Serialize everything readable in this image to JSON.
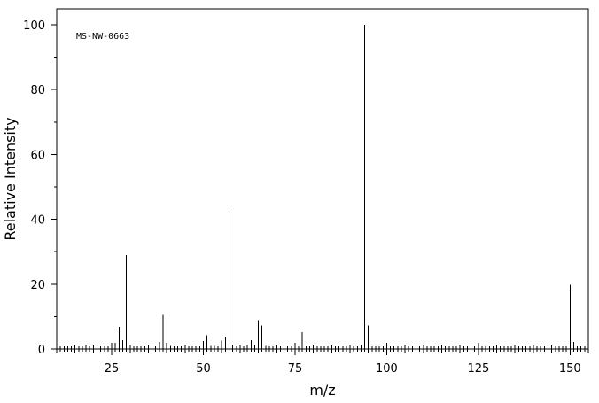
{
  "chart_data": {
    "type": "bar",
    "xlabel": "m/z",
    "ylabel": "Relative Intensity",
    "annotation": "MS-NW-0663",
    "xlim": [
      10,
      155
    ],
    "ylim": [
      0,
      100
    ],
    "x_ticks": [
      25,
      50,
      75,
      100,
      125,
      150
    ],
    "y_ticks": [
      0,
      20,
      40,
      60,
      80,
      100
    ],
    "grid": false,
    "colors": {
      "line": "#000000",
      "background": "#ffffff"
    },
    "peaks": [
      {
        "mz": 15,
        "intensity": 0.5
      },
      {
        "mz": 18,
        "intensity": 1.4
      },
      {
        "mz": 26,
        "intensity": 1.9
      },
      {
        "mz": 27,
        "intensity": 6.8
      },
      {
        "mz": 28,
        "intensity": 2.8
      },
      {
        "mz": 29,
        "intensity": 29.0
      },
      {
        "mz": 30,
        "intensity": 1.0
      },
      {
        "mz": 37,
        "intensity": 0.8
      },
      {
        "mz": 38,
        "intensity": 2.2
      },
      {
        "mz": 39,
        "intensity": 10.5
      },
      {
        "mz": 40,
        "intensity": 1.9
      },
      {
        "mz": 41,
        "intensity": 0.9
      },
      {
        "mz": 42,
        "intensity": 0.6
      },
      {
        "mz": 43,
        "intensity": 0.7
      },
      {
        "mz": 50,
        "intensity": 2.4
      },
      {
        "mz": 51,
        "intensity": 4.2
      },
      {
        "mz": 52,
        "intensity": 1.0
      },
      {
        "mz": 53,
        "intensity": 1.0
      },
      {
        "mz": 55,
        "intensity": 2.6
      },
      {
        "mz": 56,
        "intensity": 3.8
      },
      {
        "mz": 57,
        "intensity": 42.7
      },
      {
        "mz": 58,
        "intensity": 1.4
      },
      {
        "mz": 62,
        "intensity": 1.1
      },
      {
        "mz": 63,
        "intensity": 2.7
      },
      {
        "mz": 64,
        "intensity": 1.2
      },
      {
        "mz": 65,
        "intensity": 8.9
      },
      {
        "mz": 66,
        "intensity": 7.3
      },
      {
        "mz": 67,
        "intensity": 0.9
      },
      {
        "mz": 77,
        "intensity": 5.2
      },
      {
        "mz": 78,
        "intensity": 0.8
      },
      {
        "mz": 93,
        "intensity": 1.1
      },
      {
        "mz": 94,
        "intensity": 100.0
      },
      {
        "mz": 95,
        "intensity": 7.3
      },
      {
        "mz": 150,
        "intensity": 19.8
      },
      {
        "mz": 151,
        "intensity": 2.2
      }
    ]
  }
}
